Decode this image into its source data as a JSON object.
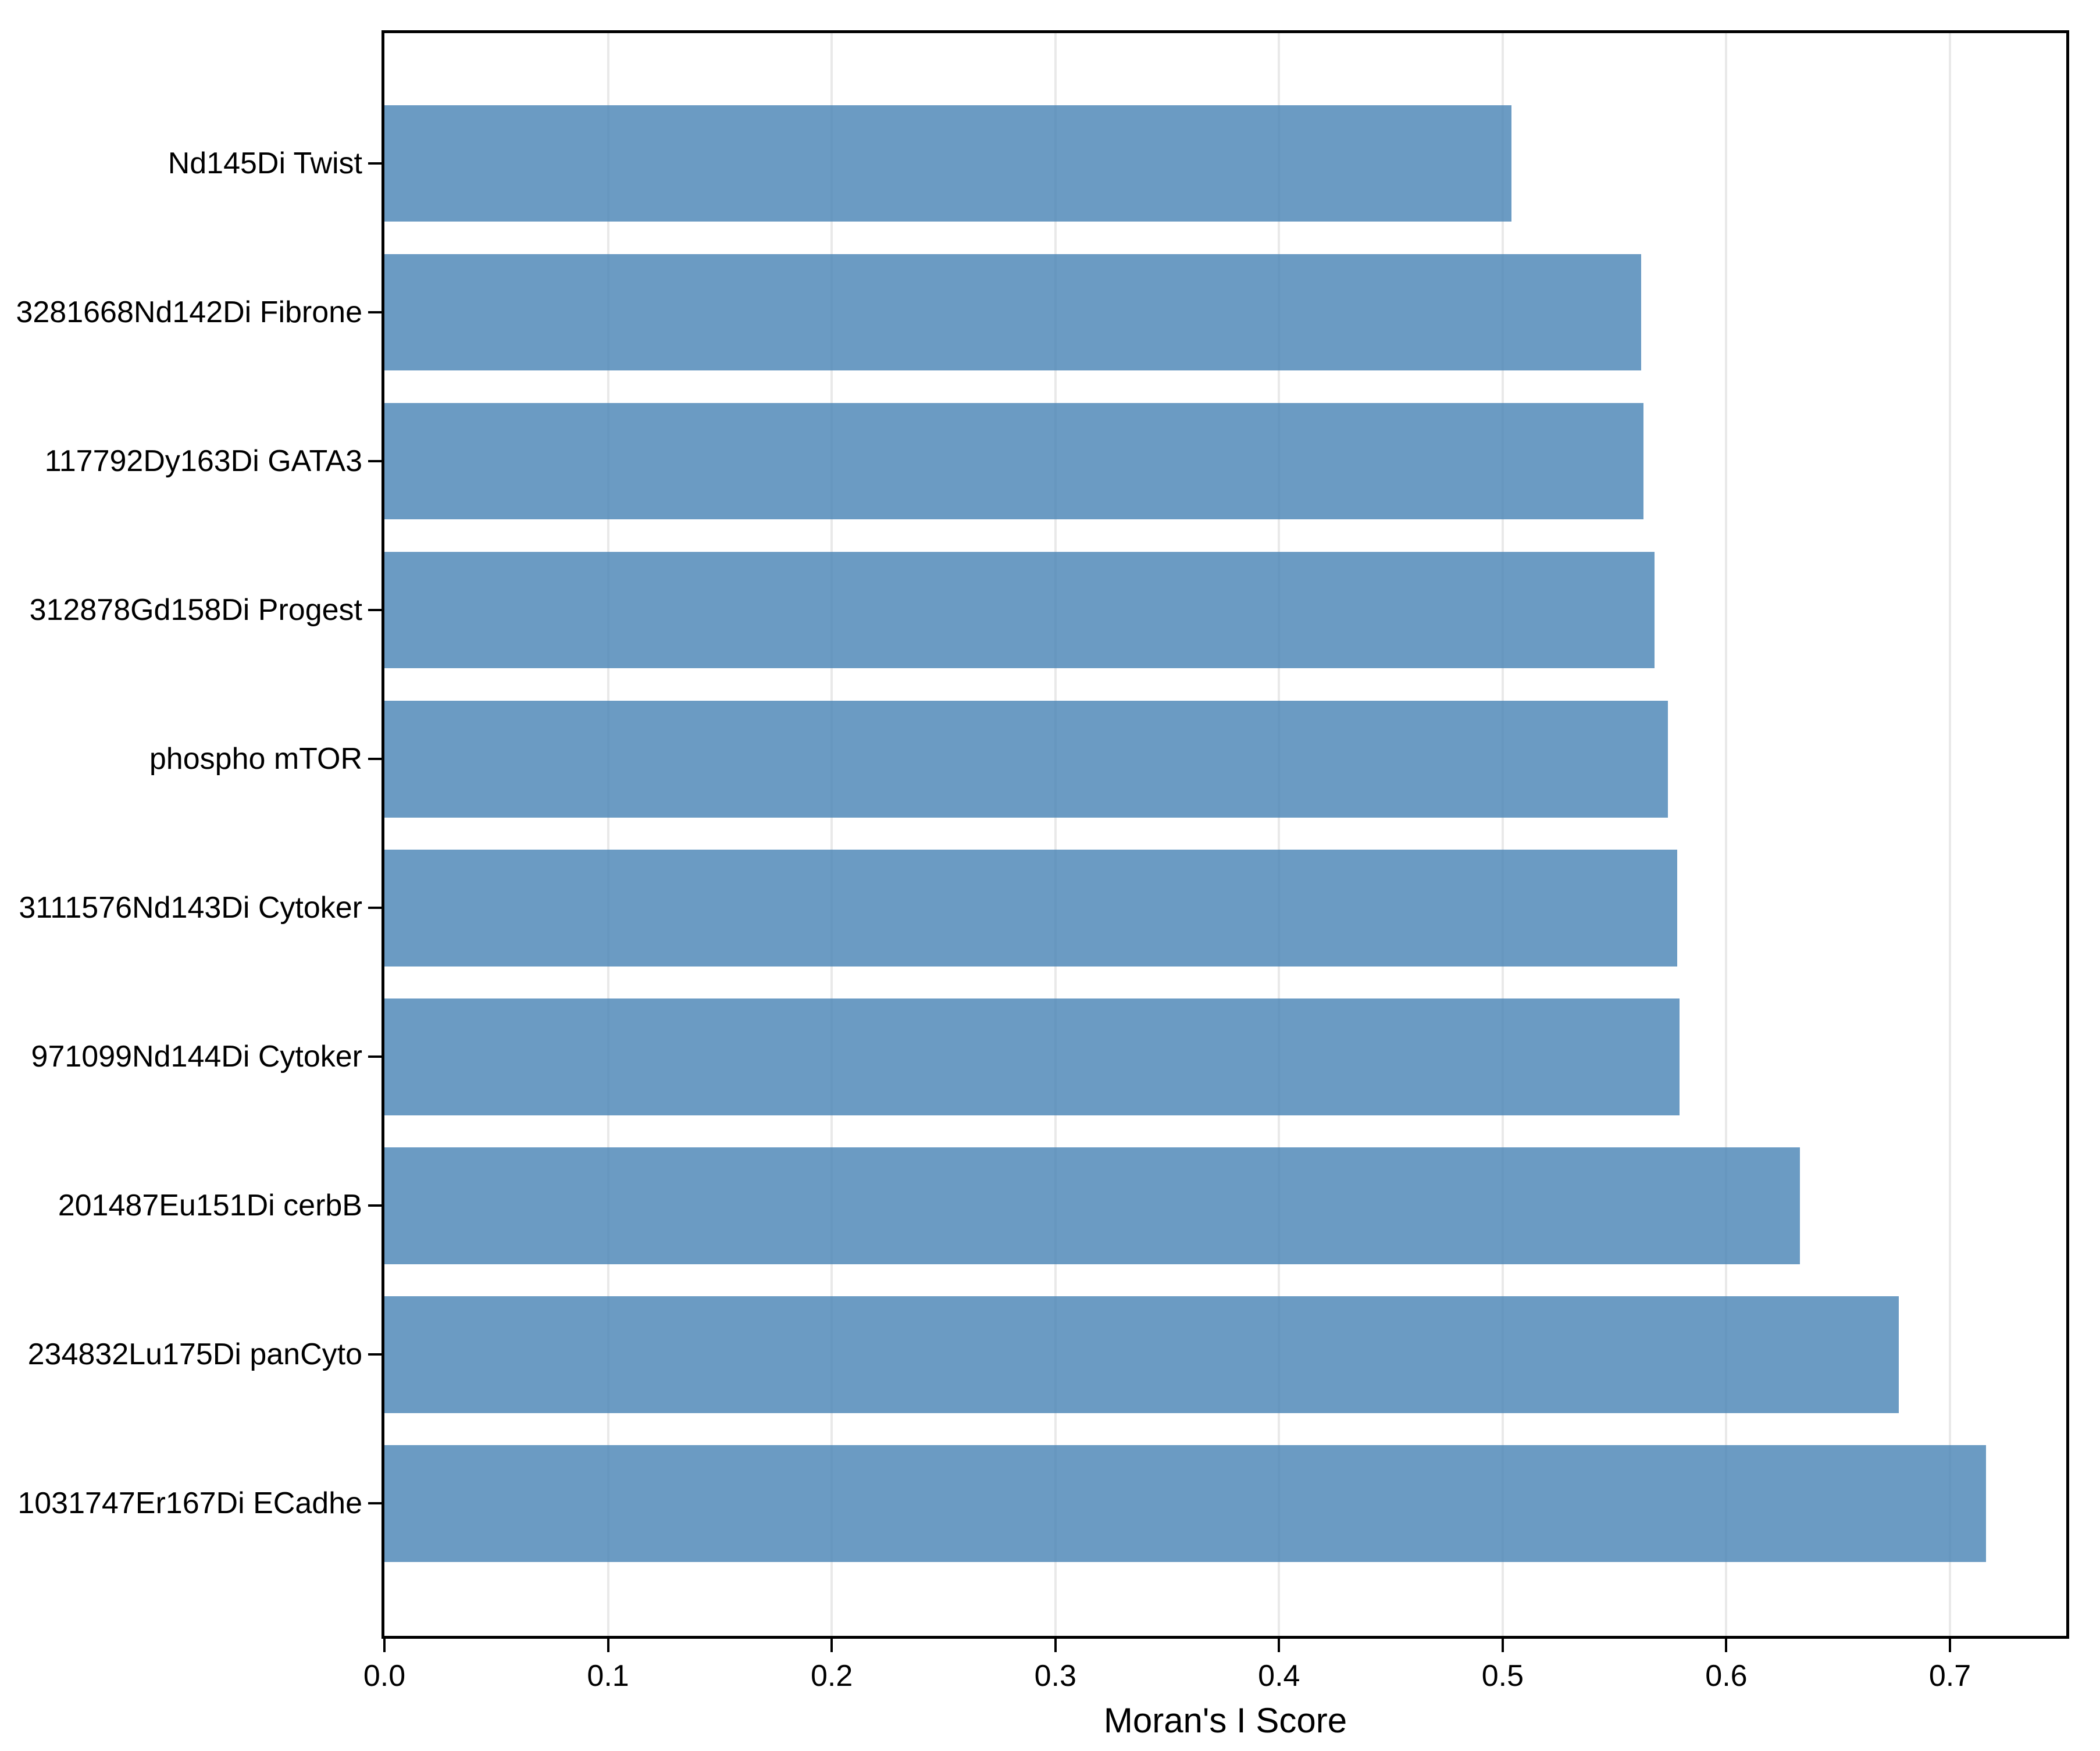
{
  "chart_data": {
    "type": "bar",
    "orientation": "horizontal",
    "title": "",
    "xlabel": "Moran's I Score",
    "ylabel": "",
    "categories": [
      "Nd145Di Twist",
      "3281668Nd142Di Fibrone",
      "117792Dy163Di GATA3",
      "312878Gd158Di Progest",
      "phospho mTOR",
      "3111576Nd143Di Cytoker",
      "971099Nd144Di Cytoker",
      "201487Eu151Di cerbB",
      "234832Lu175Di panCyto",
      "1031747Er167Di ECadhe"
    ],
    "values": [
      0.504,
      0.562,
      0.563,
      0.568,
      0.574,
      0.578,
      0.579,
      0.633,
      0.677,
      0.716
    ],
    "x_ticks": [
      0.0,
      0.1,
      0.2,
      0.3,
      0.4,
      0.5,
      0.6,
      0.7
    ],
    "x_tick_labels": [
      "0.0",
      "0.1",
      "0.2",
      "0.3",
      "0.4",
      "0.5",
      "0.6",
      "0.7"
    ],
    "xlim": [
      0,
      0.752
    ],
    "grid": true,
    "legend": false,
    "bar_color_rgba": "rgba(70,130,180,0.8)",
    "bar_color_hex": "#6b9bc3",
    "grid_color": "#e9e9e9",
    "spine_color": "#000000",
    "background": "#ffffff"
  }
}
